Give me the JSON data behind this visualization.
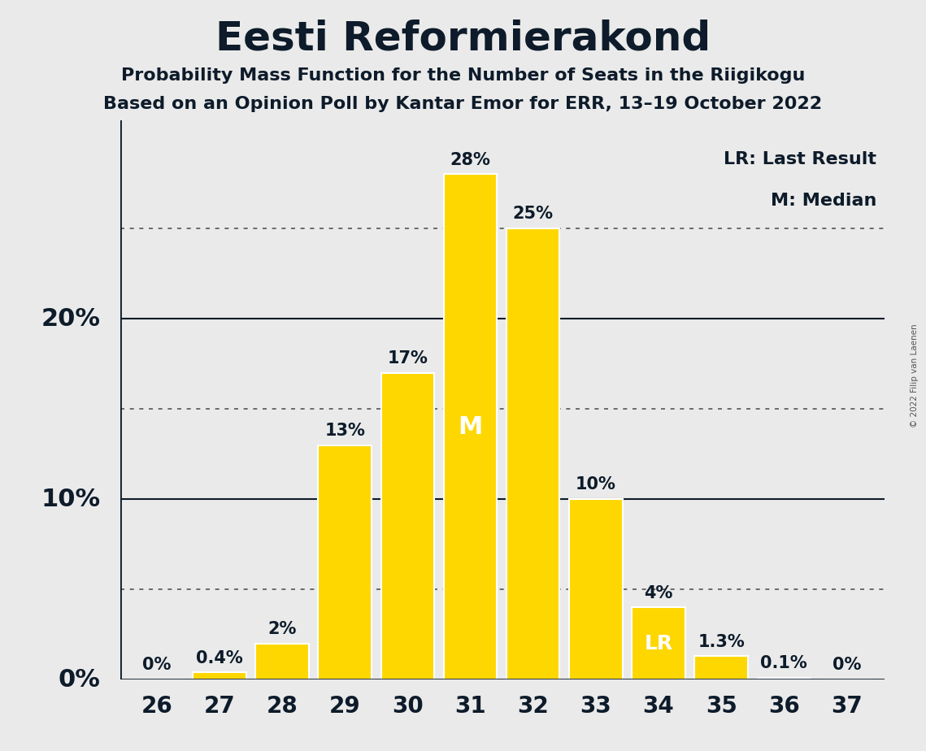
{
  "title": "Eesti Reformierakond",
  "subtitle1": "Probability Mass Function for the Number of Seats in the Riigikogu",
  "subtitle2": "Based on an Opinion Poll by Kantar Emor for ERR, 13–19 October 2022",
  "copyright": "© 2022 Filip van Laenen",
  "seats": [
    26,
    27,
    28,
    29,
    30,
    31,
    32,
    33,
    34,
    35,
    36,
    37
  ],
  "probabilities": [
    0.0,
    0.4,
    2.0,
    13.0,
    17.0,
    28.0,
    25.0,
    10.0,
    4.0,
    1.3,
    0.1,
    0.0
  ],
  "bar_color": "#FFD700",
  "background_color": "#EAEAEA",
  "median_seat": 31,
  "last_result_seat": 34,
  "legend_lr": "LR: Last Result",
  "legend_m": "M: Median",
  "solid_grid_lines": [
    10,
    20
  ],
  "dotted_grid_lines": [
    5,
    15,
    25
  ],
  "ylabel_values": [
    0,
    10,
    20
  ],
  "title_fontsize": 36,
  "subtitle_fontsize": 16,
  "bar_label_fontsize": 15,
  "legend_fontsize": 16,
  "tick_fontsize": 20,
  "ylabel_fontsize": 22,
  "ylim": [
    0,
    31
  ]
}
